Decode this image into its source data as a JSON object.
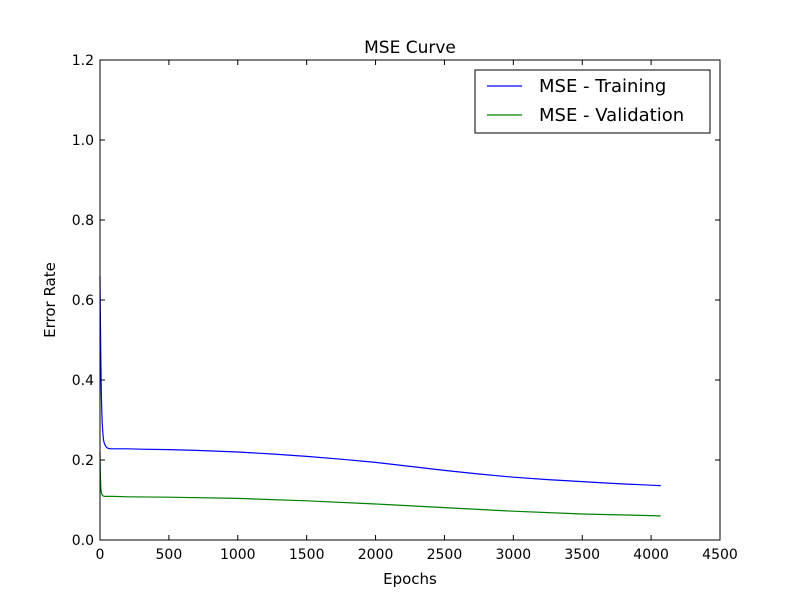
{
  "chart_data": {
    "type": "line",
    "title": "MSE Curve",
    "xlabel": "Epochs",
    "ylabel": "Error Rate",
    "xlim": [
      0,
      4500
    ],
    "ylim": [
      0.0,
      1.2
    ],
    "xticks": [
      "0",
      "500",
      "1000",
      "1500",
      "2000",
      "2500",
      "3000",
      "3500",
      "4000",
      "4500"
    ],
    "yticks": [
      "0.0",
      "0.2",
      "0.4",
      "0.6",
      "0.8",
      "1.0",
      "1.2"
    ],
    "grid": false,
    "legend_position": "top-right",
    "series": [
      {
        "name": "MSE - Training",
        "color": "#0000ff",
        "x": [
          0,
          3,
          6,
          10,
          15,
          20,
          25,
          30,
          40,
          50,
          60,
          80,
          100,
          150,
          200,
          300,
          500,
          700,
          1000,
          1250,
          1500,
          1750,
          2000,
          2250,
          2500,
          2750,
          3000,
          3250,
          3500,
          3750,
          4000,
          4070
        ],
        "y": [
          0.66,
          0.55,
          0.45,
          0.36,
          0.3,
          0.27,
          0.252,
          0.243,
          0.235,
          0.231,
          0.229,
          0.228,
          0.228,
          0.228,
          0.228,
          0.227,
          0.226,
          0.224,
          0.22,
          0.215,
          0.209,
          0.202,
          0.194,
          0.184,
          0.174,
          0.165,
          0.157,
          0.151,
          0.146,
          0.141,
          0.137,
          0.136
        ]
      },
      {
        "name": "MSE - Validation",
        "color": "#008000",
        "x": [
          0,
          3,
          6,
          10,
          15,
          20,
          25,
          30,
          40,
          60,
          100,
          200,
          500,
          1000,
          1500,
          2000,
          2500,
          3000,
          3500,
          4000,
          4070
        ],
        "y": [
          0.22,
          0.16,
          0.13,
          0.118,
          0.113,
          0.111,
          0.11,
          0.109,
          0.109,
          0.109,
          0.109,
          0.108,
          0.107,
          0.104,
          0.098,
          0.09,
          0.081,
          0.072,
          0.065,
          0.061,
          0.06
        ]
      }
    ]
  }
}
